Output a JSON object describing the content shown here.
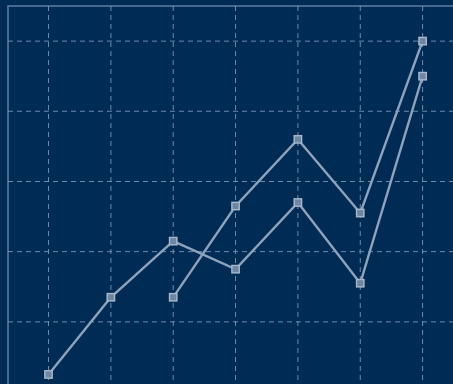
{
  "chart_data": {
    "type": "line",
    "title": "",
    "xlabel": "",
    "ylabel": "",
    "x": [
      1,
      2,
      3,
      4,
      5,
      6,
      7
    ],
    "xlim": [
      0.35,
      7.6
    ],
    "ylim": [
      0,
      1.1
    ],
    "grid": true,
    "legend": "none",
    "colors": {
      "background": "#002b55",
      "grid": "#7d9abb",
      "line": "#8ea3bb",
      "marker_fill": "#6f86a2",
      "marker_edge": "#a8b8ca"
    },
    "series": [
      {
        "x": [
          1,
          2,
          3,
          4,
          5,
          6,
          7
        ],
        "values": [
          0.05,
          0.27,
          0.43,
          0.35,
          0.54,
          0.31,
          0.9
        ]
      },
      {
        "x": [
          3,
          4,
          5,
          6,
          7
        ],
        "values": [
          0.27,
          0.53,
          0.72,
          0.51,
          1.0
        ]
      }
    ]
  }
}
